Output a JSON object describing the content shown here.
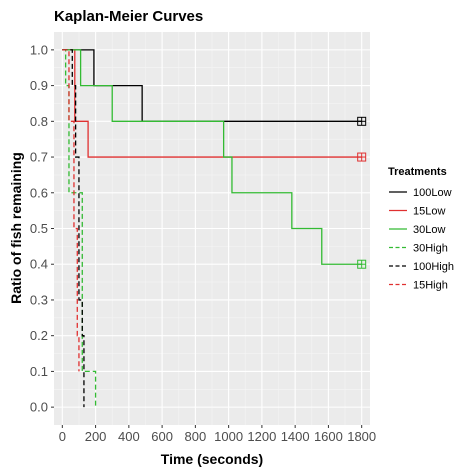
{
  "chart_data": {
    "type": "line",
    "title": "Kaplan-Meier Curves",
    "xlabel": "Time (seconds)",
    "ylabel": "Ratio of fish remaining",
    "xlim": [
      -50,
      1850
    ],
    "ylim": [
      -0.05,
      1.05
    ],
    "x_ticks": [
      0,
      200,
      400,
      600,
      800,
      1000,
      1200,
      1400,
      1600,
      1800
    ],
    "x_tick_labels": [
      "0",
      "200",
      "400",
      "600",
      "800",
      "1000",
      "1200",
      "1400",
      "1600",
      "1800"
    ],
    "y_ticks": [
      0.0,
      0.1,
      0.2,
      0.3,
      0.4,
      0.5,
      0.6,
      0.7,
      0.8,
      0.9,
      1.0
    ],
    "y_tick_labels": [
      "0.0",
      "0.1",
      "0.2",
      "0.3",
      "0.4",
      "0.5",
      "0.6",
      "0.7",
      "0.8",
      "0.9",
      "1.0"
    ],
    "grid": true,
    "legend_title": "Treatments",
    "legend_position": "right",
    "series": [
      {
        "name": "100Low",
        "color": "#000000",
        "dash": "solid",
        "x": [
          0,
          190,
          480,
          1800
        ],
        "y": [
          1.0,
          0.9,
          0.8,
          0.8
        ],
        "censored_at": [
          1800
        ]
      },
      {
        "name": "15Low",
        "color": "#e03030",
        "dash": "solid",
        "x": [
          0,
          75,
          155,
          1800
        ],
        "y": [
          1.0,
          0.8,
          0.7,
          0.7
        ],
        "censored_at": [
          1800
        ]
      },
      {
        "name": "30Low",
        "color": "#33bb33",
        "dash": "solid",
        "x": [
          0,
          110,
          300,
          970,
          1020,
          1380,
          1560,
          1800
        ],
        "y": [
          1.0,
          0.9,
          0.8,
          0.7,
          0.6,
          0.5,
          0.4,
          0.4
        ],
        "censored_at": [
          1800
        ]
      },
      {
        "name": "30High",
        "color": "#33bb33",
        "dash": "dashed",
        "x": [
          0,
          20,
          40,
          120,
          130,
          200
        ],
        "y": [
          1.0,
          0.9,
          0.6,
          0.1,
          0.1,
          0.0
        ],
        "censored_at": []
      },
      {
        "name": "100High",
        "color": "#000000",
        "dash": "dashed",
        "x": [
          0,
          60,
          80,
          100,
          120,
          130
        ],
        "y": [
          1.0,
          0.9,
          0.7,
          0.3,
          0.2,
          0.0
        ],
        "censored_at": []
      },
      {
        "name": "15High",
        "color": "#e03030",
        "dash": "dashed",
        "x": [
          0,
          40,
          70,
          90,
          100
        ],
        "y": [
          1.0,
          0.8,
          0.5,
          0.2,
          0.1
        ],
        "censored_at": []
      }
    ]
  }
}
